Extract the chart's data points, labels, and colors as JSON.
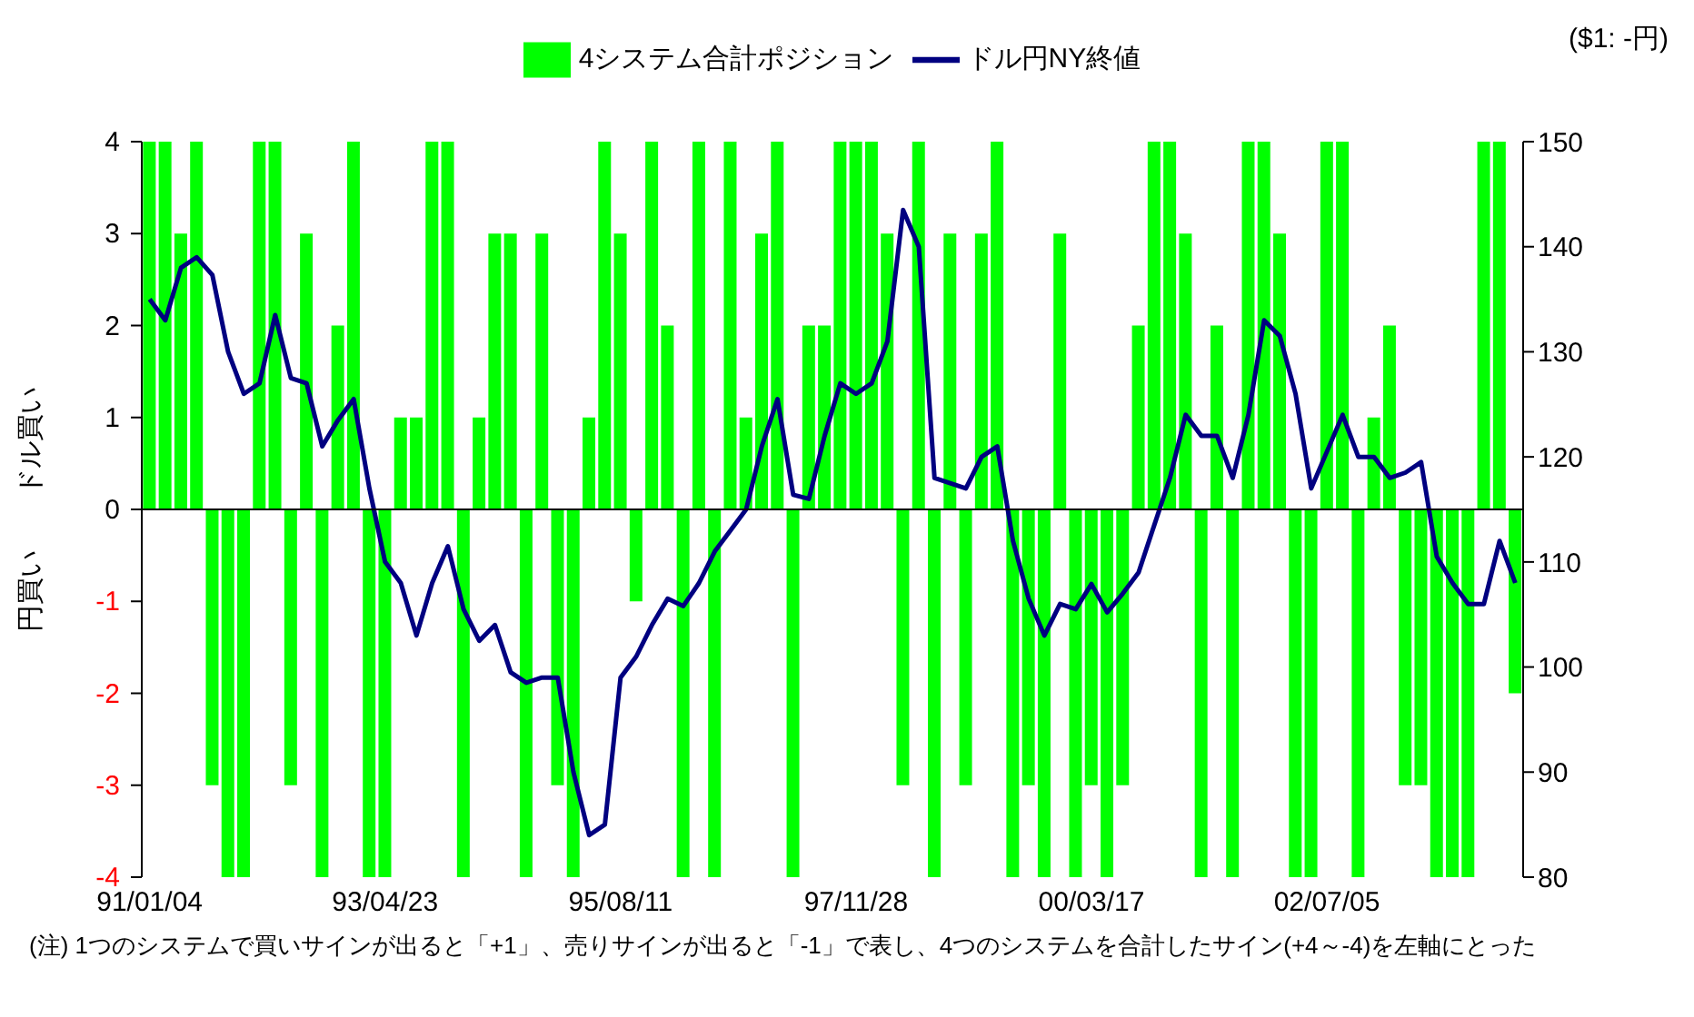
{
  "chart_data": {
    "type": "bar",
    "categories": [
      "91/01/04",
      null,
      null,
      null,
      null,
      null,
      null,
      null,
      null,
      null,
      null,
      null,
      null,
      null,
      null,
      "93/04/23",
      null,
      null,
      null,
      null,
      null,
      null,
      null,
      null,
      null,
      null,
      null,
      null,
      null,
      null,
      "95/08/11",
      null,
      null,
      null,
      null,
      null,
      null,
      null,
      null,
      null,
      null,
      null,
      null,
      null,
      null,
      "97/11/28",
      null,
      null,
      null,
      null,
      null,
      null,
      null,
      null,
      null,
      null,
      null,
      null,
      null,
      null,
      "00/03/17",
      null,
      null,
      null,
      null,
      null,
      null,
      null,
      null,
      null,
      null,
      null,
      null,
      null,
      null,
      "02/07/05",
      null,
      null,
      null,
      null,
      null,
      null,
      null,
      null,
      null,
      null,
      null,
      null
    ],
    "series": [
      {
        "name": "4システム合計ポジション",
        "color": "#00ff00",
        "values": [
          4,
          4,
          3,
          4,
          -3,
          -4,
          -4,
          4,
          4,
          -3,
          3,
          -4,
          2,
          4,
          -4,
          -4,
          1,
          1,
          4,
          4,
          -4,
          1,
          3,
          3,
          -4,
          3,
          -3,
          -4,
          1,
          4,
          3,
          -1,
          4,
          2,
          -4,
          4,
          -4,
          4,
          1,
          3,
          4,
          -4,
          2,
          2,
          4,
          4,
          4,
          3,
          -3,
          4,
          -4,
          3,
          -3,
          3,
          4,
          -4,
          -3,
          -4,
          3,
          -4,
          -3,
          -4,
          -3,
          2,
          4,
          4,
          3,
          -4,
          2,
          -4,
          4,
          4,
          3,
          -4,
          -4,
          4,
          4,
          -4,
          1,
          2,
          -3,
          -3,
          -4,
          -4,
          -4,
          4,
          4,
          -2
        ]
      },
      {
        "name": "ドル円NY終値",
        "type": "line",
        "axis": "y2",
        "color": "#000080",
        "values": [
          135,
          133,
          138,
          139,
          137.3,
          130,
          126,
          127,
          133.5,
          127.5,
          127,
          121,
          123.5,
          125.5,
          117,
          110,
          108,
          103,
          108,
          111.5,
          105.5,
          102.5,
          104,
          99.5,
          98.5,
          99,
          99,
          90,
          84,
          85,
          99,
          101,
          104,
          106.5,
          105.8,
          108,
          111,
          113,
          115,
          121,
          125.5,
          116.4,
          116,
          122,
          127,
          126,
          127,
          131,
          143.5,
          140,
          118,
          117.5,
          117,
          120,
          121,
          112,
          106.5,
          103,
          106,
          105.5,
          107.9,
          105.2,
          107,
          109,
          113.5,
          118,
          124,
          122,
          122,
          118,
          124,
          133,
          131.5,
          126,
          117,
          120.5,
          124,
          120,
          120,
          118,
          118.5,
          119.5,
          110.5,
          108,
          106,
          106,
          112,
          108
        ]
      }
    ],
    "ylabel": "円買い　　ドル買い",
    "y2label": "($1: -円)",
    "ylim": [
      -4,
      4
    ],
    "yticks": [
      -4,
      -3,
      -2,
      -1,
      0,
      1,
      2,
      3,
      4
    ],
    "y2lim": [
      80,
      150
    ],
    "y2ticks": [
      80,
      90,
      100,
      110,
      120,
      130,
      140,
      150
    ],
    "ref_lines": [
      {
        "axis": "y",
        "value": 0,
        "color": "#000000"
      }
    ],
    "grid": false,
    "legend": "top",
    "annotations": [
      "(注) 1つのシステムで買いサインが出ると「+1」、売りサインが出ると「-1」で表し、4つのシステムを合計したサイン(+4～-4)を左軸にとった"
    ]
  }
}
